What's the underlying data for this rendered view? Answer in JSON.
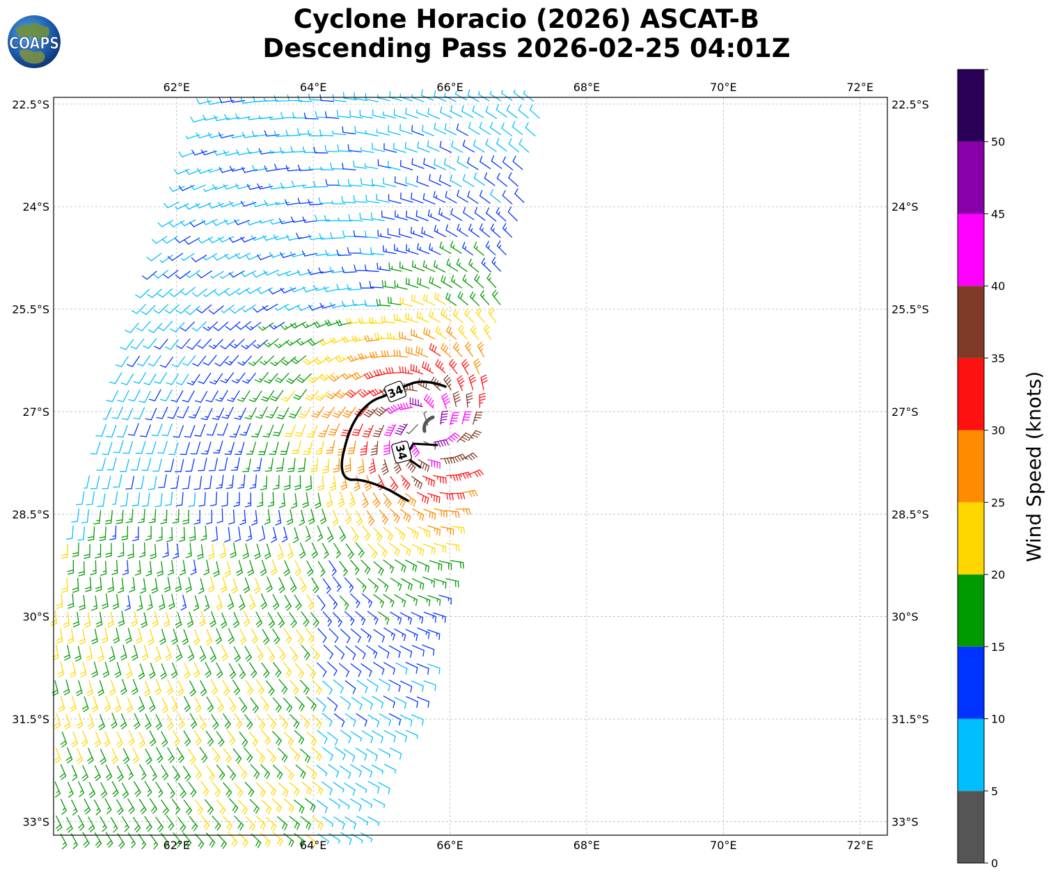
{
  "title_line1": "Cyclone Horacio (2026) ASCAT-B",
  "title_line2": "Descending Pass 2026-02-25 04:01Z",
  "logo_text": "COAPS",
  "colorbar": {
    "label": "Wind Speed (knots)",
    "ticks": [
      "0",
      "5",
      "10",
      "15",
      "20",
      "25",
      "30",
      "35",
      "40",
      "45",
      "50"
    ],
    "bins": [
      {
        "min": 0,
        "max": 5,
        "color": "#555555"
      },
      {
        "min": 5,
        "max": 10,
        "color": "#00bfff"
      },
      {
        "min": 10,
        "max": 15,
        "color": "#0033ff"
      },
      {
        "min": 15,
        "max": 20,
        "color": "#009900"
      },
      {
        "min": 20,
        "max": 25,
        "color": "#ffd700"
      },
      {
        "min": 25,
        "max": 30,
        "color": "#ff8c00"
      },
      {
        "min": 30,
        "max": 35,
        "color": "#ff1111"
      },
      {
        "min": 35,
        "max": 40,
        "color": "#7f3b27"
      },
      {
        "min": 40,
        "max": 45,
        "color": "#ff00ff"
      },
      {
        "min": 45,
        "max": 50,
        "color": "#8800aa"
      },
      {
        "min": 50,
        "max": 55,
        "color": "#2b0057"
      }
    ]
  },
  "map": {
    "lon_range": [
      60.2,
      72.4
    ],
    "lat_range": [
      -33.2,
      -22.4
    ],
    "lon_ticks": [
      "62°E",
      "64°E",
      "66°E",
      "68°E",
      "70°E",
      "72°E"
    ],
    "lat_ticks": [
      "22.5°S",
      "24°S",
      "25.5°S",
      "27°S",
      "28.5°S",
      "30°S",
      "31.5°S",
      "33°S"
    ],
    "grid": true
  },
  "contour": {
    "label": "34",
    "label2": "34"
  },
  "swath": {
    "corners_lonlat": [
      [
        62.4,
        -22.4
      ],
      [
        67.4,
        -22.4
      ],
      [
        65.6,
        -31.2
      ],
      [
        64.7,
        -33.2
      ],
      [
        60.2,
        -33.2
      ],
      [
        60.2,
        -29.6
      ]
    ]
  }
}
